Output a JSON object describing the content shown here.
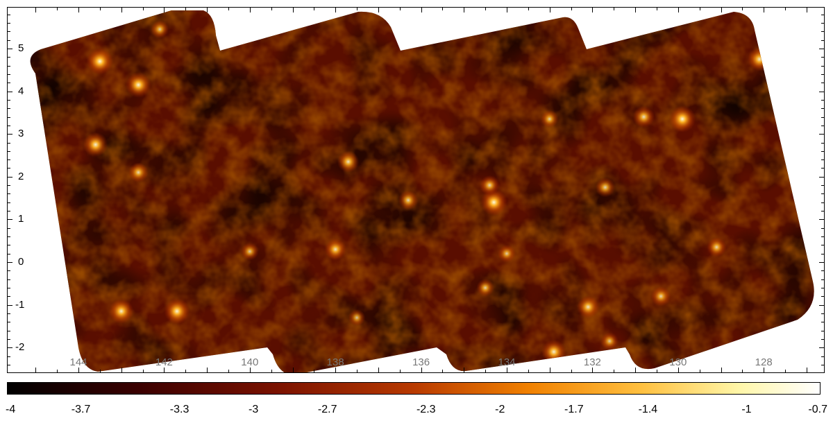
{
  "map": {
    "x_ticks": [
      "144",
      "142",
      "140",
      "138",
      "136",
      "134",
      "132",
      "130",
      "128"
    ],
    "y_ticks": [
      "5",
      "4",
      "3",
      "2",
      "1",
      "0",
      "-1",
      "-2"
    ],
    "colormap": [
      "#000000",
      "#3a0000",
      "#7a1200",
      "#b83a00",
      "#f08000",
      "#ffc040",
      "#fff6a8",
      "#ffffff"
    ],
    "background_color": "#5a0e00"
  },
  "colorbar": {
    "labels": [
      "-4",
      "-3.7",
      "-3.3",
      "-3",
      "-2.7",
      "-2.3",
      "-2",
      "-1.7",
      "-1.4",
      "-1",
      "-0.7"
    ]
  },
  "sources": [
    {
      "x": 143.5,
      "y": 4.7,
      "level": 0.95
    },
    {
      "x": 142.6,
      "y": 4.15,
      "level": 0.9
    },
    {
      "x": 143.6,
      "y": 2.75,
      "level": 0.85
    },
    {
      "x": 142.6,
      "y": 2.1,
      "level": 0.6
    },
    {
      "x": 142.1,
      "y": 5.45,
      "level": 0.5
    },
    {
      "x": 137.7,
      "y": 2.35,
      "level": 0.7
    },
    {
      "x": 136.3,
      "y": 1.45,
      "level": 0.6
    },
    {
      "x": 138.0,
      "y": 0.3,
      "level": 0.7
    },
    {
      "x": 134.3,
      "y": 1.4,
      "level": 0.95
    },
    {
      "x": 134.4,
      "y": 1.8,
      "level": 0.6
    },
    {
      "x": 133.0,
      "y": 3.35,
      "level": 0.5
    },
    {
      "x": 129.9,
      "y": 3.35,
      "level": 0.95
    },
    {
      "x": 130.8,
      "y": 3.4,
      "level": 0.7
    },
    {
      "x": 131.7,
      "y": 1.75,
      "level": 0.6
    },
    {
      "x": 128.1,
      "y": 4.75,
      "level": 0.8
    },
    {
      "x": 129.1,
      "y": 0.35,
      "level": 0.6
    },
    {
      "x": 141.7,
      "y": -1.15,
      "level": 0.9
    },
    {
      "x": 143.0,
      "y": -1.15,
      "level": 0.85
    },
    {
      "x": 132.1,
      "y": -1.05,
      "level": 0.75
    },
    {
      "x": 132.9,
      "y": -2.1,
      "level": 0.85
    },
    {
      "x": 130.4,
      "y": -0.8,
      "level": 0.6
    },
    {
      "x": 131.6,
      "y": -1.85,
      "level": 0.5
    },
    {
      "x": 134.0,
      "y": 0.2,
      "level": 0.5
    },
    {
      "x": 140.0,
      "y": 0.25,
      "level": 0.5
    },
    {
      "x": 134.5,
      "y": -0.6,
      "level": 0.5
    },
    {
      "x": 137.5,
      "y": -1.3,
      "level": 0.45
    }
  ]
}
